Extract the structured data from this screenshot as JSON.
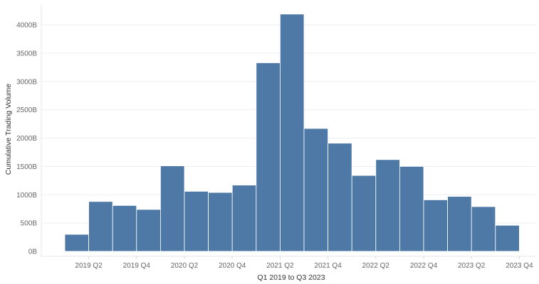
{
  "chart_data": {
    "type": "bar",
    "xlabel": "Q1 2019 to Q3 2023",
    "ylabel": "Cumulative Trading Volume",
    "ylim": [
      0,
      42000
    ],
    "yticks": [
      0,
      5000,
      10000,
      15000,
      20000,
      25000,
      30000,
      35000,
      40000
    ],
    "ytick_labels": [
      "0B",
      "500B",
      "1000B",
      "1500B",
      "2000B",
      "2500B",
      "3000B",
      "3500B",
      "4000B"
    ],
    "categories": [
      "2019 Q1",
      "2019 Q2",
      "2019 Q3",
      "2019 Q4",
      "2020 Q1",
      "2020 Q2",
      "2020 Q3",
      "2020 Q4",
      "2021 Q1",
      "2021 Q2",
      "2021 Q3",
      "2021 Q4",
      "2022 Q1",
      "2022 Q2",
      "2022 Q3",
      "2022 Q4",
      "2023 Q1",
      "2023 Q2",
      "2023 Q3"
    ],
    "values": [
      3000,
      8800,
      8100,
      7400,
      15100,
      10600,
      10400,
      11700,
      33300,
      41900,
      21700,
      19100,
      13400,
      16200,
      15000,
      9100,
      9700,
      7900,
      4600
    ],
    "xtick_labels": [
      "2019 Q2",
      "2019 Q4",
      "2020 Q2",
      "2020 Q4",
      "2021 Q2",
      "2021 Q4",
      "2022 Q2",
      "2022 Q4",
      "2023 Q2",
      "2023 Q4"
    ],
    "bar_color": "#4e79a7",
    "gridlines": true
  }
}
